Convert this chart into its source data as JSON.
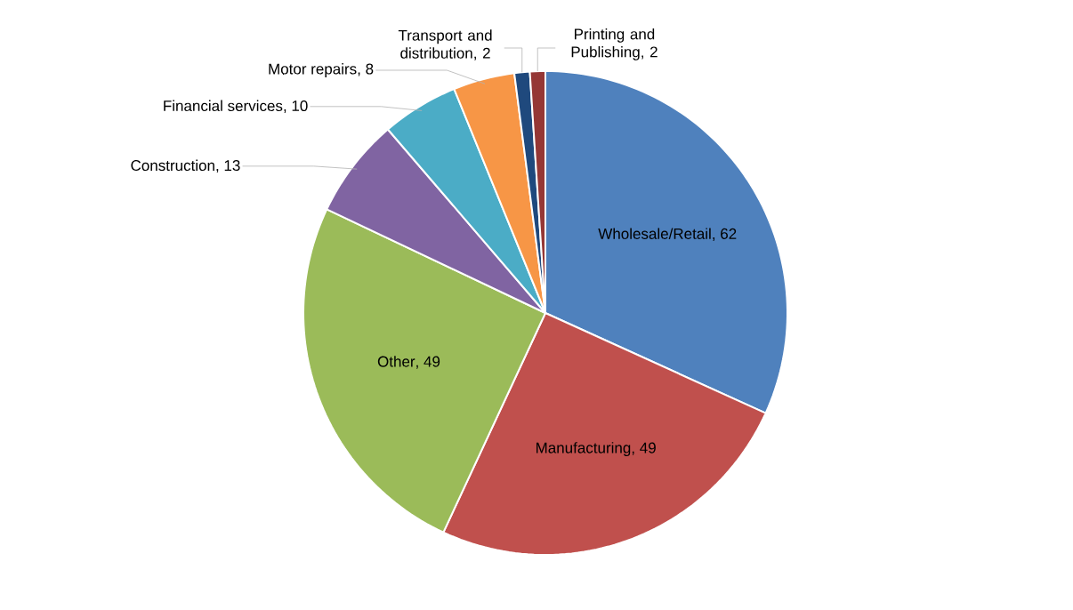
{
  "chart_data": {
    "type": "pie",
    "categories": [
      "Wholesale/Retail",
      "Manufacturing",
      "Other",
      "Construction",
      "Financial services",
      "Motor repairs",
      "Transport and distribution",
      "Printing and Publishing"
    ],
    "values": [
      62,
      49,
      49,
      13,
      10,
      8,
      2,
      2
    ],
    "colors": [
      "#4f81bd",
      "#c0504d",
      "#9bbb59",
      "#8064a2",
      "#4bacc6",
      "#f79646",
      "#1f497d",
      "#953735"
    ],
    "value_labels": [
      ", 62",
      ", 49",
      ", 49",
      ", 13",
      ", 10",
      ", 8",
      ", 2",
      ", 2"
    ]
  }
}
